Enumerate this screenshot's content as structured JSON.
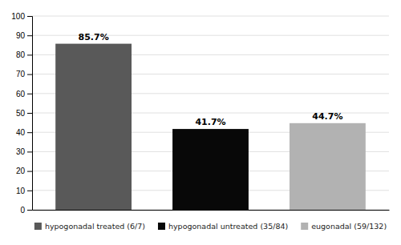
{
  "chart_data": {
    "type": "bar",
    "categories": [
      "hypogonadal treated (6/7)",
      "hypogonadal untreated (35/84)",
      "eugonadal (59/132)"
    ],
    "values": [
      85.7,
      41.7,
      44.7
    ],
    "value_labels": [
      "85.7%",
      "41.7%",
      "44.7%"
    ],
    "colors": [
      "#595959",
      "#080808",
      "#b2b2b2"
    ],
    "ylim": [
      0,
      100
    ],
    "yticks": [
      0,
      10,
      20,
      30,
      40,
      50,
      60,
      70,
      80,
      90,
      100
    ],
    "grid": true,
    "data_labels": true,
    "legend": "bottom",
    "tick_labels": "y"
  }
}
